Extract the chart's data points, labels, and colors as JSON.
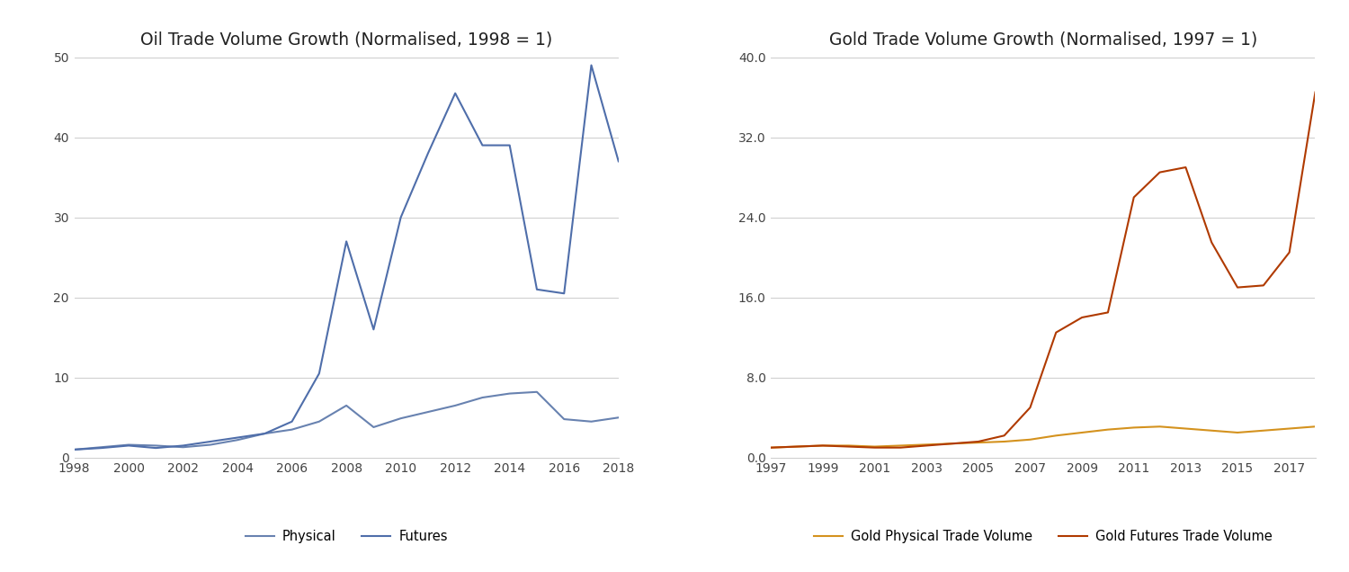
{
  "oil_title": "Oil Trade Volume Growth (Normalised, 1998 = 1)",
  "oil_years": [
    1998,
    1999,
    2000,
    2001,
    2002,
    2003,
    2004,
    2005,
    2006,
    2007,
    2008,
    2009,
    2010,
    2011,
    2012,
    2013,
    2014,
    2015,
    2016,
    2017,
    2018
  ],
  "oil_physical": [
    1.0,
    1.3,
    1.6,
    1.5,
    1.3,
    1.6,
    2.2,
    3.0,
    3.5,
    4.5,
    6.5,
    3.8,
    4.9,
    5.7,
    6.5,
    7.5,
    8.0,
    8.2,
    4.8,
    4.5,
    5.0
  ],
  "oil_futures": [
    1.0,
    1.2,
    1.5,
    1.2,
    1.5,
    2.0,
    2.5,
    3.0,
    4.5,
    10.5,
    27.0,
    16.0,
    30.0,
    38.0,
    45.5,
    39.0,
    39.0,
    21.0,
    20.5,
    49.0,
    37.0
  ],
  "oil_ylim": [
    0,
    50
  ],
  "oil_yticks": [
    0,
    10,
    20,
    30,
    40,
    50
  ],
  "oil_xticks": [
    1998,
    2000,
    2002,
    2004,
    2006,
    2008,
    2010,
    2012,
    2014,
    2016,
    2018
  ],
  "oil_physical_label": "Physical",
  "oil_futures_label": "Futures",
  "oil_physical_color": "#6882B0",
  "oil_futures_color": "#4F6EAA",
  "gold_title": "Gold Trade Volume Growth (Normalised, 1997 = 1)",
  "gold_years": [
    1997,
    1998,
    1999,
    2000,
    2001,
    2002,
    2003,
    2004,
    2005,
    2006,
    2007,
    2008,
    2009,
    2010,
    2011,
    2012,
    2013,
    2014,
    2015,
    2016,
    2017,
    2018
  ],
  "gold_physical": [
    1.0,
    1.1,
    1.2,
    1.2,
    1.1,
    1.2,
    1.3,
    1.4,
    1.5,
    1.6,
    1.8,
    2.2,
    2.5,
    2.8,
    3.0,
    3.1,
    2.9,
    2.7,
    2.5,
    2.7,
    2.9,
    3.1
  ],
  "gold_futures": [
    1.0,
    1.1,
    1.2,
    1.1,
    1.0,
    1.0,
    1.2,
    1.4,
    1.6,
    2.2,
    5.0,
    12.5,
    14.0,
    14.5,
    26.0,
    28.5,
    29.0,
    21.5,
    17.0,
    17.2,
    20.5,
    36.5
  ],
  "gold_ylim": [
    0,
    40
  ],
  "gold_yticks": [
    0.0,
    8.0,
    16.0,
    24.0,
    32.0,
    40.0
  ],
  "gold_xticks": [
    1997,
    1999,
    2001,
    2003,
    2005,
    2007,
    2009,
    2011,
    2013,
    2015,
    2017
  ],
  "gold_physical_label": "Gold Physical Trade Volume",
  "gold_futures_label": "Gold Futures Trade Volume",
  "gold_physical_color": "#D4921E",
  "gold_futures_color": "#B03A00",
  "background_color": "#FFFFFF",
  "grid_color": "#CCCCCC",
  "title_fontsize": 13.5,
  "legend_fontsize": 10.5,
  "tick_fontsize": 10,
  "line_width": 1.5
}
